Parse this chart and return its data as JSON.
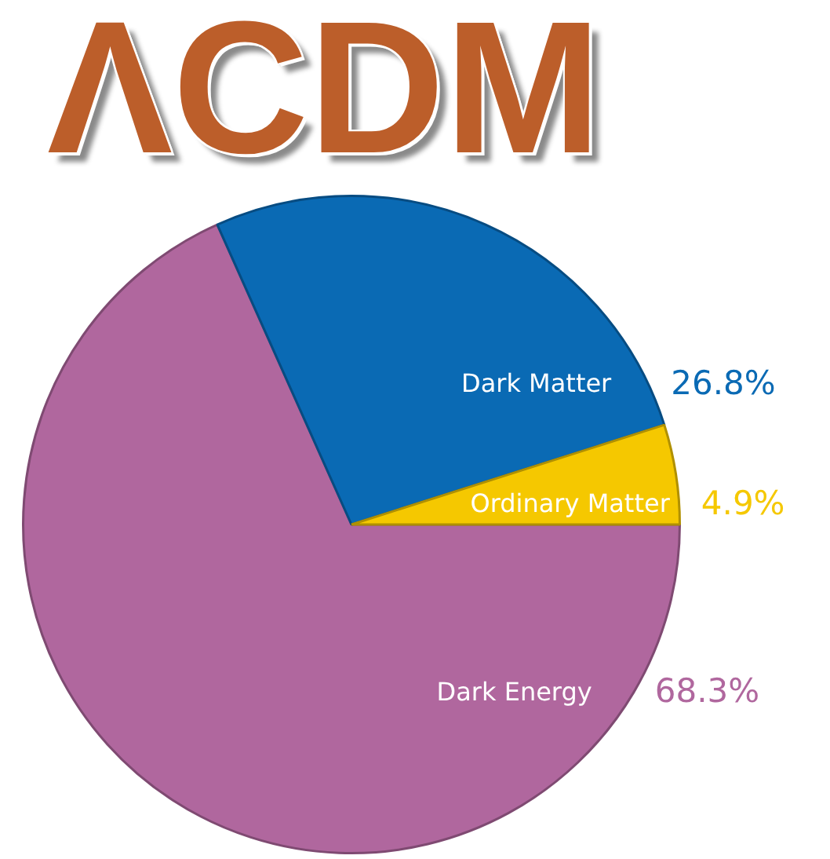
{
  "chart_data": {
    "type": "pie",
    "title": "ΛCDM",
    "categories": [
      "Dark Energy",
      "Dark Matter",
      "Ordinary Matter"
    ],
    "values": [
      68.3,
      26.8,
      4.9
    ],
    "colors": [
      "#b0679e",
      "#0a6ab4",
      "#f5c800"
    ],
    "value_labels": [
      "68.3%",
      "26.8%",
      "4.9%"
    ]
  }
}
